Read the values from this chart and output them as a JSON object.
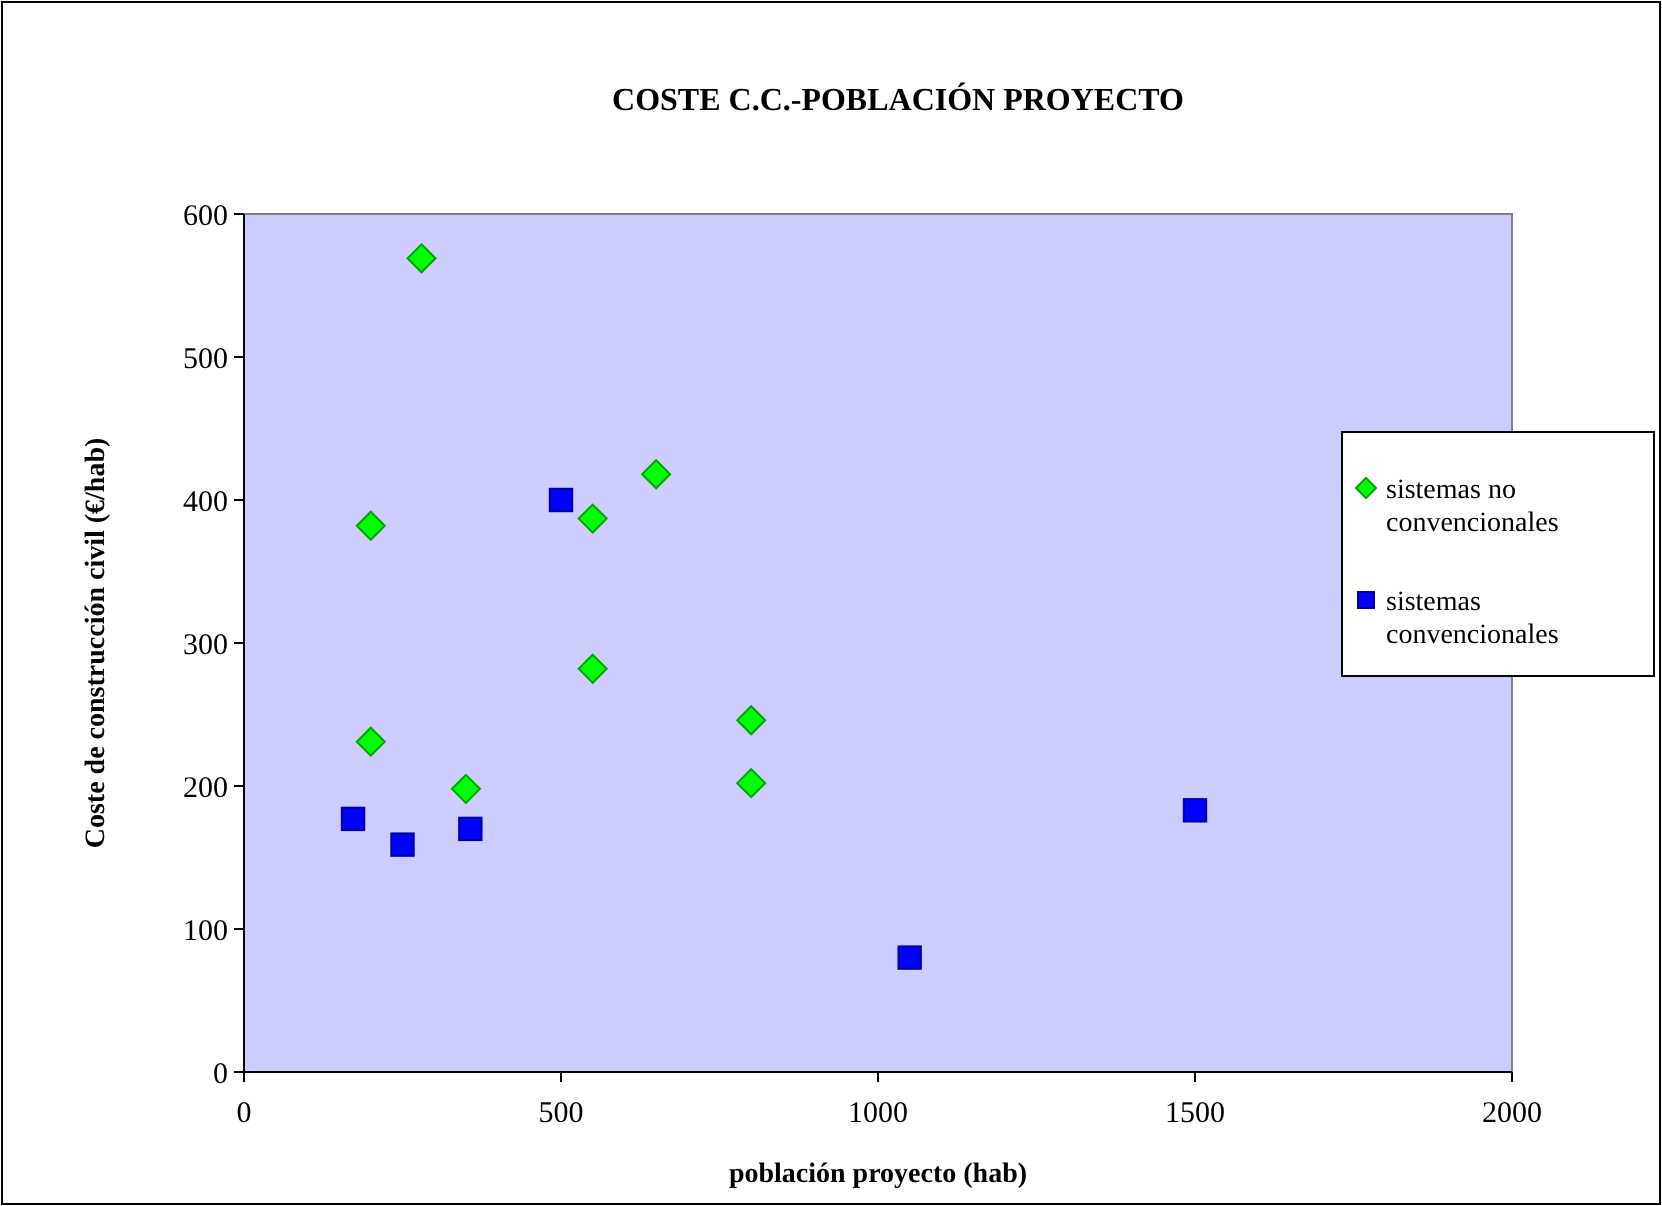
{
  "chart_data": {
    "type": "scatter",
    "title": "COSTE C.C.-POBLACIÓN PROYECTO",
    "xlabel": "población proyecto (hab)",
    "ylabel": "Coste de construcción civil (€/hab)",
    "xlim": [
      0,
      2000
    ],
    "xticks": [
      0,
      500,
      1000,
      1500,
      2000
    ],
    "ylim": [
      0,
      600
    ],
    "yticks": [
      0,
      100,
      200,
      300,
      400,
      500,
      600
    ],
    "grid": false,
    "legend": "right",
    "series": [
      {
        "name": "sistemas no convencionales",
        "color": "#00ff00",
        "marker": "diamond",
        "x": [
          280,
          200,
          200,
          350,
          550,
          550,
          650,
          800,
          800
        ],
        "values": [
          569,
          382,
          231,
          198,
          387,
          282,
          418,
          246,
          202
        ]
      },
      {
        "name": "sistemas convencionales",
        "color": "#0000ff",
        "marker": "square",
        "x": [
          172,
          250,
          357,
          500,
          1050,
          1500
        ],
        "values": [
          177,
          159,
          170,
          400,
          80,
          183
        ]
      }
    ]
  }
}
